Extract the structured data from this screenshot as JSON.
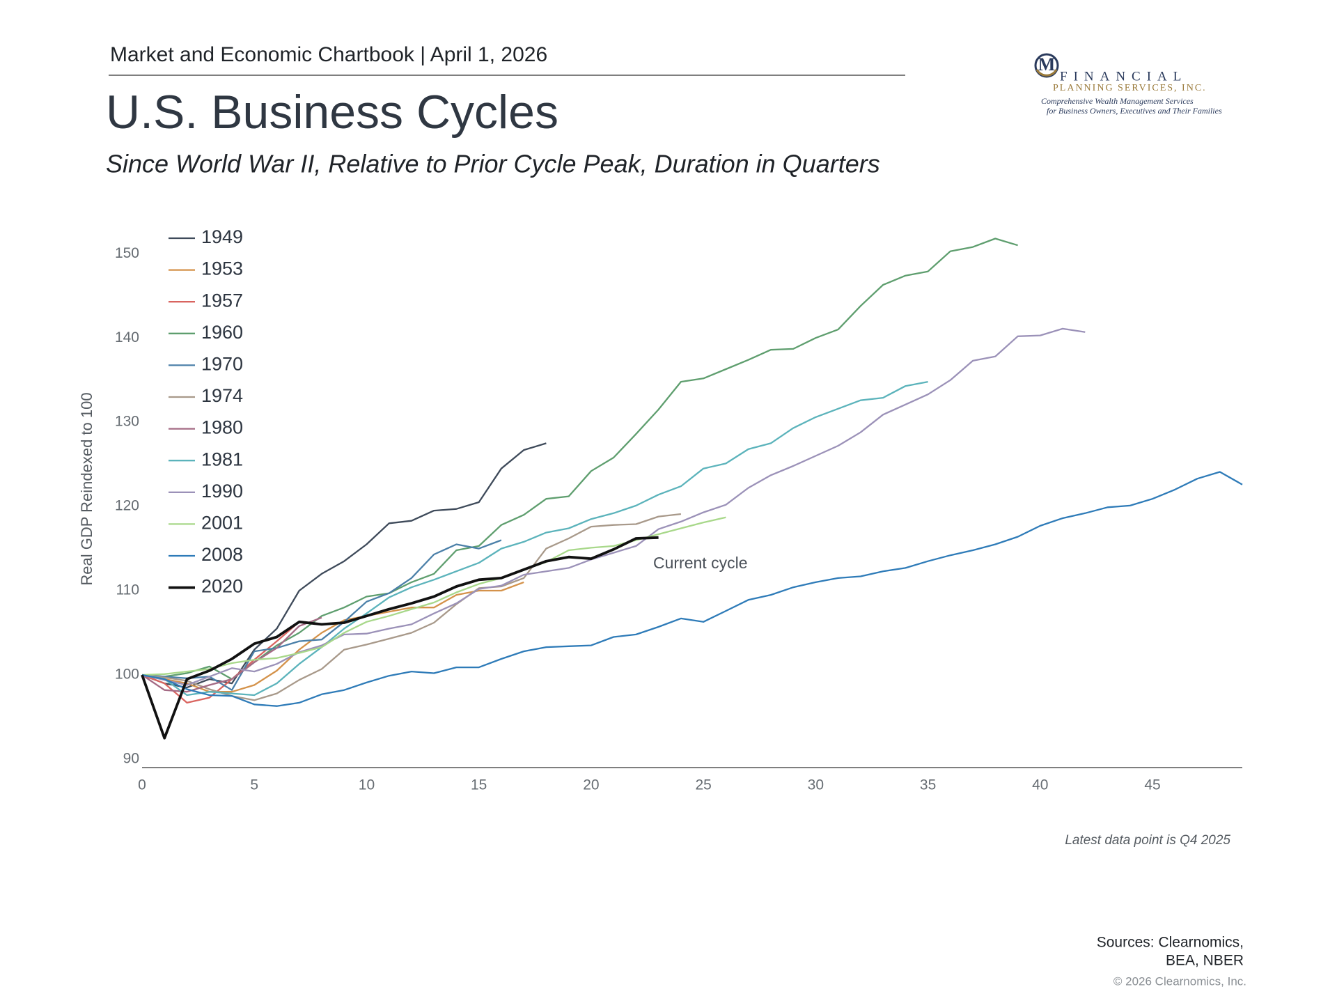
{
  "header": "Market and Economic Chartbook | April 1, 2026",
  "logo": {
    "mark": "M",
    "name": "FINANCIAL",
    "subname": "PLANNING SERVICES, INC.",
    "tagline": [
      "Comprehensive Wealth Management Services",
      "for Business Owners, Executives and Their Families"
    ]
  },
  "chart_data": {
    "type": "line",
    "title": "U.S. Business Cycles",
    "subtitle": "Since World War II, Relative to Prior Cycle Peak, Duration in Quarters",
    "y_label": "Real GDP Reindexed to 100",
    "annotation": "Current cycle",
    "note": "Latest data point is Q4 2025",
    "legend": "upper left",
    "grid": false,
    "xlim": [
      0,
      49
    ],
    "ylim": [
      89,
      153
    ],
    "xticks": [
      0,
      5,
      10,
      15,
      20,
      25,
      30,
      35,
      40,
      45
    ],
    "yticks": [
      90,
      100,
      110,
      120,
      130,
      140,
      150
    ],
    "x": [
      0,
      1,
      2,
      3,
      4,
      5,
      6,
      7,
      8,
      9,
      10,
      11,
      12,
      13,
      14,
      15,
      16,
      17,
      18,
      19,
      20,
      21,
      22,
      23,
      24,
      25,
      26,
      27,
      28,
      29,
      30,
      31,
      32,
      33,
      34,
      35,
      36,
      37,
      38,
      39,
      40,
      41,
      42,
      43,
      44,
      45,
      46,
      47,
      48,
      49
    ],
    "series": [
      {
        "name": "1949",
        "color": "#3e4a5a",
        "values": [
          100,
          99,
          98.5,
          99.5,
          99,
          103,
          105.5,
          110,
          112,
          113.5,
          115.5,
          118,
          118.3,
          119.5,
          119.7,
          120.5,
          124.5,
          126.7,
          127.5,
          null,
          null,
          null,
          null,
          null,
          null,
          null,
          null,
          null,
          null,
          null,
          null,
          null,
          null,
          null,
          null,
          null,
          null,
          null,
          null,
          null,
          null,
          null,
          null,
          null,
          null,
          null,
          null,
          null,
          null,
          null
        ]
      },
      {
        "name": "1953",
        "color": "#d4924a",
        "values": [
          100,
          99.5,
          99,
          98,
          98,
          98.8,
          100.5,
          103,
          105,
          106.5,
          107,
          107.5,
          108,
          108,
          109.5,
          110,
          110,
          111,
          null,
          null,
          null,
          null,
          null,
          null,
          null,
          null,
          null,
          null,
          null,
          null,
          null,
          null,
          null,
          null,
          null,
          null,
          null,
          null,
          null,
          null,
          null,
          null,
          null,
          null,
          null,
          null,
          null,
          null,
          null,
          null
        ]
      },
      {
        "name": "1957",
        "color": "#d9645f",
        "values": [
          100,
          99,
          96.7,
          97.3,
          99.5,
          101.8,
          104,
          106.3,
          null,
          null,
          null,
          null,
          null,
          null,
          null,
          null,
          null,
          null,
          null,
          null,
          null,
          null,
          null,
          null,
          null,
          null,
          null,
          null,
          null,
          null,
          null,
          null,
          null,
          null,
          null,
          null,
          null,
          null,
          null,
          null,
          null,
          null,
          null,
          null,
          null,
          null,
          null,
          null,
          null,
          null
        ]
      },
      {
        "name": "1960",
        "color": "#5e9e6e",
        "values": [
          100,
          99.8,
          100.2,
          101,
          99.5,
          101.5,
          103.5,
          105,
          107,
          108,
          109.3,
          109.7,
          111,
          112,
          114.8,
          115.3,
          117.8,
          119,
          120.9,
          121.2,
          124.2,
          125.8,
          128.6,
          131.5,
          134.8,
          135.2,
          136.3,
          137.4,
          138.6,
          138.7,
          140,
          141,
          143.8,
          146.3,
          147.4,
          147.9,
          150.3,
          150.8,
          151.8,
          151,
          null,
          null,
          null,
          null,
          null,
          null,
          null,
          null,
          null,
          null
        ]
      },
      {
        "name": "1970",
        "color": "#4a7fa8",
        "values": [
          100,
          99.8,
          99.6,
          99.8,
          98.2,
          102.8,
          103.2,
          104,
          104.2,
          106.3,
          108.7,
          109.7,
          111.5,
          114.3,
          115.5,
          115,
          116,
          null,
          null,
          null,
          null,
          null,
          null,
          null,
          null,
          null,
          null,
          null,
          null,
          null,
          null,
          null,
          null,
          null,
          null,
          null,
          null,
          null,
          null,
          null,
          null,
          null,
          null,
          null,
          null,
          null,
          null,
          null,
          null,
          null
        ]
      },
      {
        "name": "1974",
        "color": "#a8998a",
        "values": [
          100,
          99.7,
          99.3,
          98.3,
          97.5,
          97,
          97.8,
          99.4,
          100.7,
          103,
          103.6,
          104.3,
          105,
          106.2,
          108.4,
          110.3,
          110.5,
          111.5,
          115,
          116.2,
          117.6,
          117.8,
          117.9,
          118.8,
          119.1,
          null,
          null,
          null,
          null,
          null,
          null,
          null,
          null,
          null,
          null,
          null,
          null,
          null,
          null,
          null,
          null,
          null,
          null,
          null,
          null,
          null,
          null,
          null,
          null,
          null
        ]
      },
      {
        "name": "1980",
        "color": "#a46a84",
        "values": [
          100,
          98.2,
          98,
          98.8,
          99.5,
          101.5,
          103.2,
          105.8,
          106.8,
          null,
          null,
          null,
          null,
          null,
          null,
          null,
          null,
          null,
          null,
          null,
          null,
          null,
          null,
          null,
          null,
          null,
          null,
          null,
          null,
          null,
          null,
          null,
          null,
          null,
          null,
          null,
          null,
          null,
          null,
          null,
          null,
          null,
          null,
          null,
          null,
          null,
          null,
          null,
          null,
          null
        ]
      },
      {
        "name": "1981",
        "color": "#5bb3bb",
        "values": [
          100,
          99.5,
          97.6,
          98,
          97.8,
          97.6,
          99,
          101.3,
          103.3,
          105.5,
          107.3,
          109.2,
          110.4,
          111.3,
          112.3,
          113.3,
          115,
          115.8,
          116.9,
          117.4,
          118.5,
          119.2,
          120.1,
          121.4,
          122.4,
          124.5,
          125.1,
          126.8,
          127.5,
          129.3,
          130.6,
          131.6,
          132.6,
          132.9,
          134.3,
          134.8,
          null,
          null,
          null,
          null,
          null,
          null,
          null,
          null,
          null,
          null,
          null,
          null,
          null,
          null
        ]
      },
      {
        "name": "1990",
        "color": "#9b91b8",
        "values": [
          100,
          99.4,
          98.8,
          99.8,
          100.8,
          100.4,
          101.3,
          102.7,
          103.5,
          104.8,
          104.9,
          105.5,
          106,
          107.3,
          108.5,
          110.2,
          110.6,
          111.9,
          112.3,
          112.7,
          113.7,
          114.5,
          115.3,
          117.3,
          118.2,
          119.3,
          120.2,
          122.2,
          123.7,
          124.8,
          126,
          127.2,
          128.8,
          130.9,
          132.1,
          133.3,
          135,
          137.3,
          137.8,
          140.2,
          140.3,
          141.1,
          140.7,
          null,
          null,
          null,
          null,
          null,
          null,
          null
        ]
      },
      {
        "name": "2001",
        "color": "#a8d88a",
        "values": [
          100,
          100.1,
          100.4,
          100.7,
          101.4,
          101.8,
          102,
          102.6,
          103.3,
          105,
          106.3,
          107,
          107.8,
          108.6,
          109.8,
          110.8,
          111.5,
          112.5,
          113.4,
          114.8,
          115.1,
          115.3,
          116,
          116.7,
          117.4,
          118.1,
          118.7,
          null,
          null,
          null,
          null,
          null,
          null,
          null,
          null,
          null,
          null,
          null,
          null,
          null,
          null,
          null,
          null,
          null,
          null,
          null,
          null,
          null,
          null,
          null
        ]
      },
      {
        "name": "2008",
        "color": "#2e7bb8",
        "values": [
          100,
          99.5,
          98.3,
          97.6,
          97.5,
          96.5,
          96.3,
          96.7,
          97.7,
          98.2,
          99.1,
          99.9,
          100.4,
          100.2,
          100.9,
          100.9,
          101.9,
          102.8,
          103.3,
          103.4,
          103.5,
          104.5,
          104.8,
          105.7,
          106.7,
          106.3,
          107.6,
          108.9,
          109.5,
          110.4,
          111,
          111.5,
          111.7,
          112.3,
          112.7,
          113.5,
          114.2,
          114.8,
          115.5,
          116.4,
          117.7,
          118.6,
          119.2,
          119.9,
          120.1,
          120.9,
          122,
          123.3,
          124.1,
          122.6
        ]
      },
      {
        "name": "2020",
        "color": "#111111",
        "values": [
          100,
          92.5,
          99.5,
          100.5,
          101.9,
          103.7,
          104.5,
          106.3,
          106,
          106.2,
          107,
          107.8,
          108.5,
          109.3,
          110.5,
          111.3,
          111.5,
          112.5,
          113.5,
          114,
          113.8,
          114.9,
          116.2,
          116.3,
          null,
          null,
          null,
          null,
          null,
          null,
          null,
          null,
          null,
          null,
          null,
          null,
          null,
          null,
          null,
          null,
          null,
          null,
          null,
          null,
          null,
          null,
          null,
          null,
          null,
          null
        ]
      }
    ]
  },
  "sources": [
    "Sources: Clearnomics,",
    "BEA, NBER"
  ],
  "copyright": "© 2026 Clearnomics, Inc."
}
